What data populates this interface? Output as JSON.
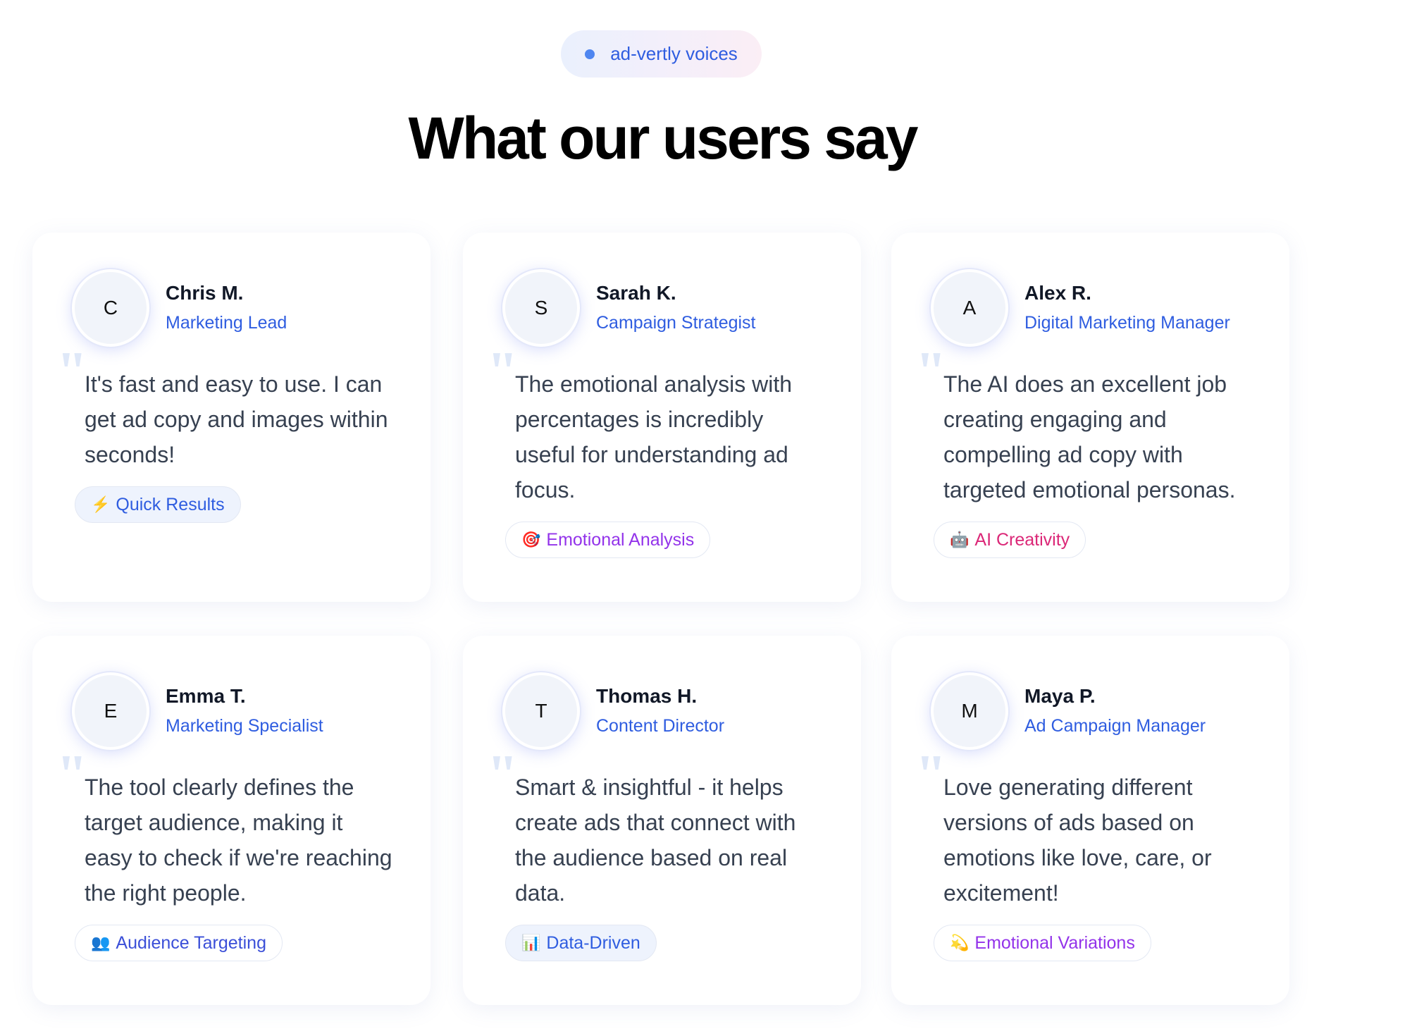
{
  "badge": {
    "label": "ad-vertly voices",
    "dot_color": "#4f86f0"
  },
  "heading": "What our users say",
  "testimonials": [
    {
      "initial": "C",
      "name": "Chris M.",
      "role": "Marketing Lead",
      "quote": "It's fast and easy to use. I can get ad copy and images within seconds!",
      "tag": {
        "icon": "⚡",
        "icon_name": "lightning-icon",
        "label": "Quick Results",
        "color": "#2f5de0",
        "bg": "#eef3fd"
      }
    },
    {
      "initial": "S",
      "name": "Sarah K.",
      "role": "Campaign Strategist",
      "quote": "The emotional analysis with percentages is incredibly useful for understanding ad focus.",
      "tag": {
        "icon": "🎯",
        "icon_name": "target-icon",
        "label": "Emotional Analysis",
        "color": "#9333ea",
        "bg": "#ffffff"
      }
    },
    {
      "initial": "A",
      "name": "Alex R.",
      "role": "Digital Marketing Manager",
      "quote": "The AI does an excellent job creating engaging and compelling ad copy with targeted emotional personas.",
      "tag": {
        "icon": "🤖",
        "icon_name": "robot-icon",
        "label": "AI Creativity",
        "color": "#db2777",
        "bg": "#ffffff"
      }
    },
    {
      "initial": "E",
      "name": "Emma T.",
      "role": "Marketing Specialist",
      "quote": "The tool clearly defines the target audience, making it easy to check if we're reaching the right people.",
      "tag": {
        "icon": "👥",
        "icon_name": "people-icon",
        "label": "Audience Targeting",
        "color": "#3b4fd8",
        "bg": "#ffffff"
      }
    },
    {
      "initial": "T",
      "name": "Thomas H.",
      "role": "Content Director",
      "quote": "Smart & insightful - it helps create ads that connect with the audience based on real data.",
      "tag": {
        "icon": "📊",
        "icon_name": "bar-chart-icon",
        "label": "Data-Driven",
        "color": "#2f5de0",
        "bg": "#eef3fd"
      }
    },
    {
      "initial": "M",
      "name": "Maya P.",
      "role": "Ad Campaign Manager",
      "quote": "Love generating different versions of ads based on emotions like love, care, or excitement!",
      "tag": {
        "icon": "💫",
        "icon_name": "sparkle-icon",
        "label": "Emotional Variations",
        "color": "#9333ea",
        "bg": "#ffffff"
      }
    }
  ]
}
